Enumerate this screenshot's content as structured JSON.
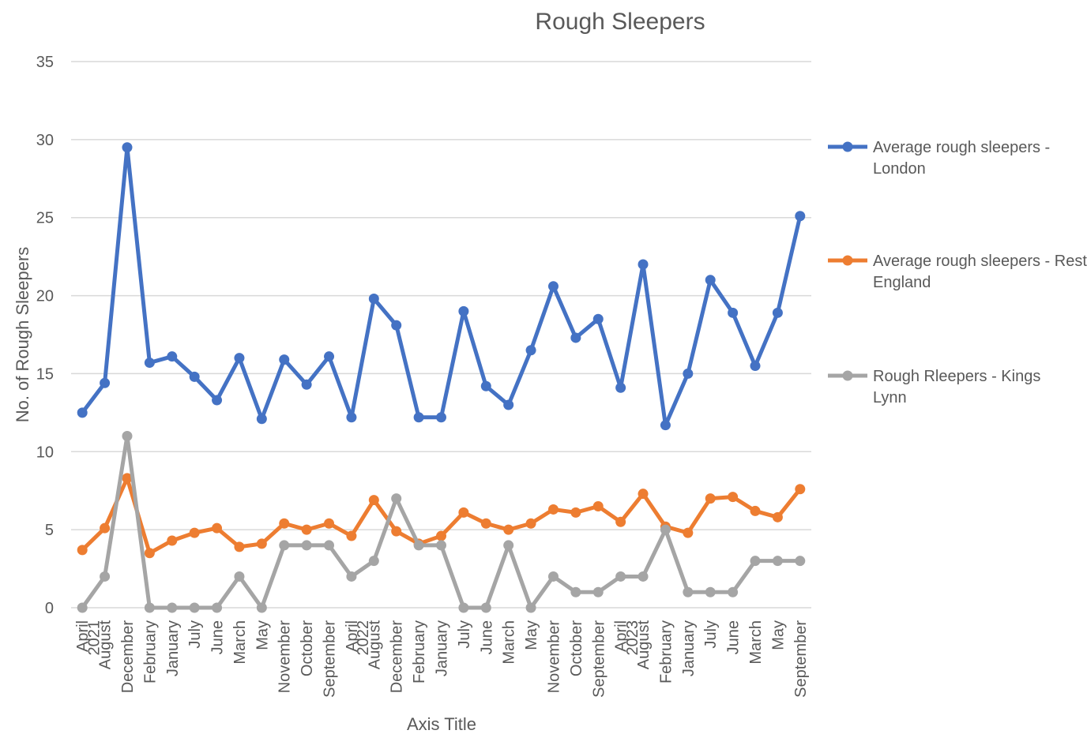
{
  "chart_data": {
    "type": "line",
    "title": "Rough Sleepers",
    "xlabel": "Axis Title",
    "ylabel": "No. of Rough Sleepers",
    "ylim": [
      0,
      35
    ],
    "yticks": [
      0,
      5,
      10,
      15,
      20,
      25,
      30,
      35
    ],
    "grid": true,
    "legend_position": "right",
    "categories": [
      "April",
      "August",
      "December",
      "February",
      "January",
      "July",
      "June",
      "March",
      "May",
      "November",
      "October",
      "September",
      "April",
      "August",
      "December",
      "February",
      "January",
      "July",
      "June",
      "March",
      "May",
      "November",
      "October",
      "September",
      "April",
      "August",
      "February",
      "January",
      "July",
      "June",
      "March",
      "May",
      "September"
    ],
    "year_markers": [
      {
        "label": "2021",
        "index": 0
      },
      {
        "label": "2022",
        "index": 12
      },
      {
        "label": "2023",
        "index": 24
      }
    ],
    "series": [
      {
        "name": "Average rough sleepers - London",
        "color": "#4472C4",
        "values": [
          12.5,
          14.4,
          29.5,
          15.7,
          16.1,
          14.8,
          13.3,
          16.0,
          12.1,
          15.9,
          14.3,
          16.1,
          12.2,
          19.8,
          18.1,
          12.2,
          12.2,
          19.0,
          14.2,
          13.0,
          16.5,
          20.6,
          17.3,
          18.5,
          14.1,
          22.0,
          11.7,
          15.0,
          21.0,
          18.9,
          15.5,
          18.9,
          25.1
        ]
      },
      {
        "name": "Average rough sleepers - Rest of England",
        "color": "#ED7D31",
        "values": [
          3.7,
          5.1,
          8.3,
          3.5,
          4.3,
          4.8,
          5.1,
          3.9,
          4.1,
          5.4,
          5.0,
          5.4,
          4.6,
          6.9,
          4.9,
          4.1,
          4.6,
          6.1,
          5.4,
          5.0,
          5.4,
          6.3,
          6.1,
          6.5,
          5.5,
          7.3,
          5.2,
          4.8,
          7.0,
          7.1,
          6.2,
          5.8,
          7.6
        ]
      },
      {
        "name": "Rough Rleepers - Kings Lynn",
        "color": "#A5A5A5",
        "values": [
          0,
          2,
          11,
          0,
          0,
          0,
          0,
          2,
          0,
          4,
          4,
          4,
          2,
          3,
          7,
          4,
          4,
          0,
          0,
          4,
          0,
          2,
          1,
          1,
          2,
          2,
          5,
          1,
          1,
          1,
          3,
          3,
          3
        ]
      }
    ]
  }
}
